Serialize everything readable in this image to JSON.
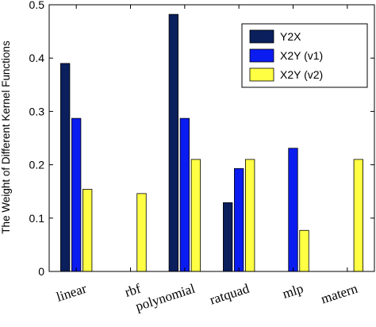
{
  "chart_data": {
    "type": "bar",
    "categories": [
      "linear",
      "rbf",
      "polynomial",
      "ratquad",
      "mlp",
      "matern"
    ],
    "series": [
      {
        "name": "Y2X",
        "color": "#0a1f5c",
        "values": [
          0.39,
          0,
          0.482,
          0.129,
          0,
          0
        ]
      },
      {
        "name": "X2Y (v1)",
        "color": "#0b1cf0",
        "values": [
          0.287,
          0,
          0.287,
          0.193,
          0.231,
          0
        ]
      },
      {
        "name": "X2Y (v2)",
        "color": "#ffff44",
        "values": [
          0.154,
          0.146,
          0.21,
          0.21,
          0.077,
          0.21
        ]
      }
    ],
    "title": "",
    "xlabel": "",
    "ylabel": "The Weight of Different Kernel Functions",
    "ylim": [
      0,
      0.5
    ],
    "yticks": [
      "0",
      "0.1",
      "0.2",
      "0.3",
      "0.4",
      "0.5"
    ],
    "grid": false,
    "legend": "top-right"
  }
}
